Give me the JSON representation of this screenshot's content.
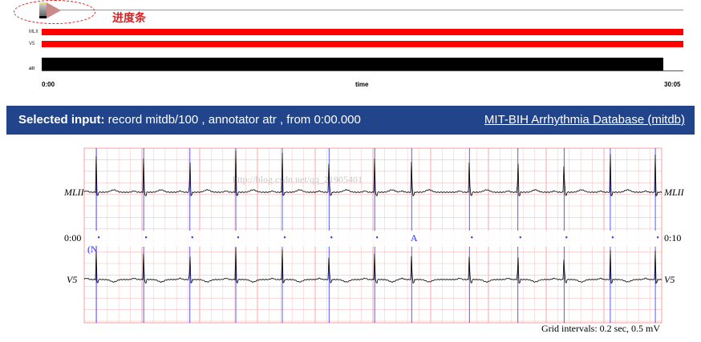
{
  "progress": {
    "annotation_label": "进度条",
    "start": "0:00",
    "axis_label": "time",
    "end": "30:05"
  },
  "overview": {
    "signals": [
      "MLII",
      "V5"
    ],
    "annotator": "atr"
  },
  "header": {
    "selected_prefix": "Selected input:",
    "selected_text": " record mitdb/100 , annotator atr , from 0:00.000",
    "db_link": "MIT-BIH Arrhythmia Database (mitdb)"
  },
  "ecg": {
    "signal_top": "MLII",
    "signal_bottom": "V5",
    "time_start": "0:00",
    "time_end": "0:10",
    "rhythm_label": "(N",
    "watermark": "http://blog.csdn.net/qq_21905401",
    "beats": [
      {
        "t": 0.21,
        "label": "•"
      },
      {
        "t": 1.03,
        "label": "•"
      },
      {
        "t": 1.83,
        "label": "•"
      },
      {
        "t": 2.625,
        "label": "•"
      },
      {
        "t": 3.43,
        "label": "•"
      },
      {
        "t": 4.24,
        "label": "•"
      },
      {
        "t": 5.03,
        "label": "•"
      },
      {
        "t": 5.67,
        "label": "A"
      },
      {
        "t": 6.67,
        "label": "•"
      },
      {
        "t": 7.51,
        "label": "•"
      },
      {
        "t": 8.31,
        "label": "•"
      },
      {
        "t": 9.11,
        "label": "•"
      },
      {
        "t": 9.89,
        "label": "•"
      }
    ],
    "grid_caption": "Grid intervals: 0.2 sec, 0.5 mV",
    "colors": {
      "grid": "#f4a0a0",
      "beat_marker": "#3030ff",
      "trace": "#000000"
    }
  },
  "colors": {
    "header_bg": "#21448a",
    "signal_bar": "#ff0000",
    "annotation_text": "#e02020"
  }
}
